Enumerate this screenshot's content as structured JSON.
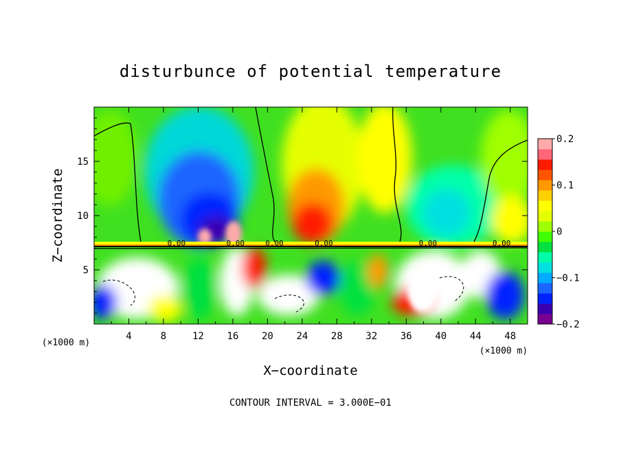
{
  "chart_data": {
    "type": "heatmap",
    "title": "disturbunce of potential temperature",
    "xlabel": "X−coordinate",
    "ylabel": "Z−coordinate",
    "x_unit": "(×1000 m)",
    "y_unit": "(×1000 m)",
    "xlim": [
      0,
      50
    ],
    "ylim": [
      0,
      20
    ],
    "x_ticks": [
      "4",
      "8",
      "12",
      "16",
      "20",
      "24",
      "28",
      "32",
      "36",
      "40",
      "44",
      "48"
    ],
    "y_ticks": [
      "5",
      "10",
      "15"
    ],
    "colorbar": {
      "range": [
        -0.2,
        0.2
      ],
      "ticks": [
        "0.2",
        "0.1",
        "0",
        "−0.1",
        "−0.2"
      ],
      "colors": [
        "#7a0090",
        "#3a00b0",
        "#0022ff",
        "#1a66ff",
        "#00aaff",
        "#00e0e0",
        "#00ffa8",
        "#00e040",
        "#40ff00",
        "#a0ff00",
        "#e6ff00",
        "#ffff00",
        "#ffd000",
        "#ff9900",
        "#ff5500",
        "#ff1a00",
        "#ff6677",
        "#ffaaaa"
      ]
    },
    "contour_labels": [
      "0.00",
      "0.00",
      "0.00",
      "0.00",
      "0.00",
      "0.00"
    ],
    "contour_interval_text": "CONTOUR INTERVAL = 3.000E−01"
  }
}
